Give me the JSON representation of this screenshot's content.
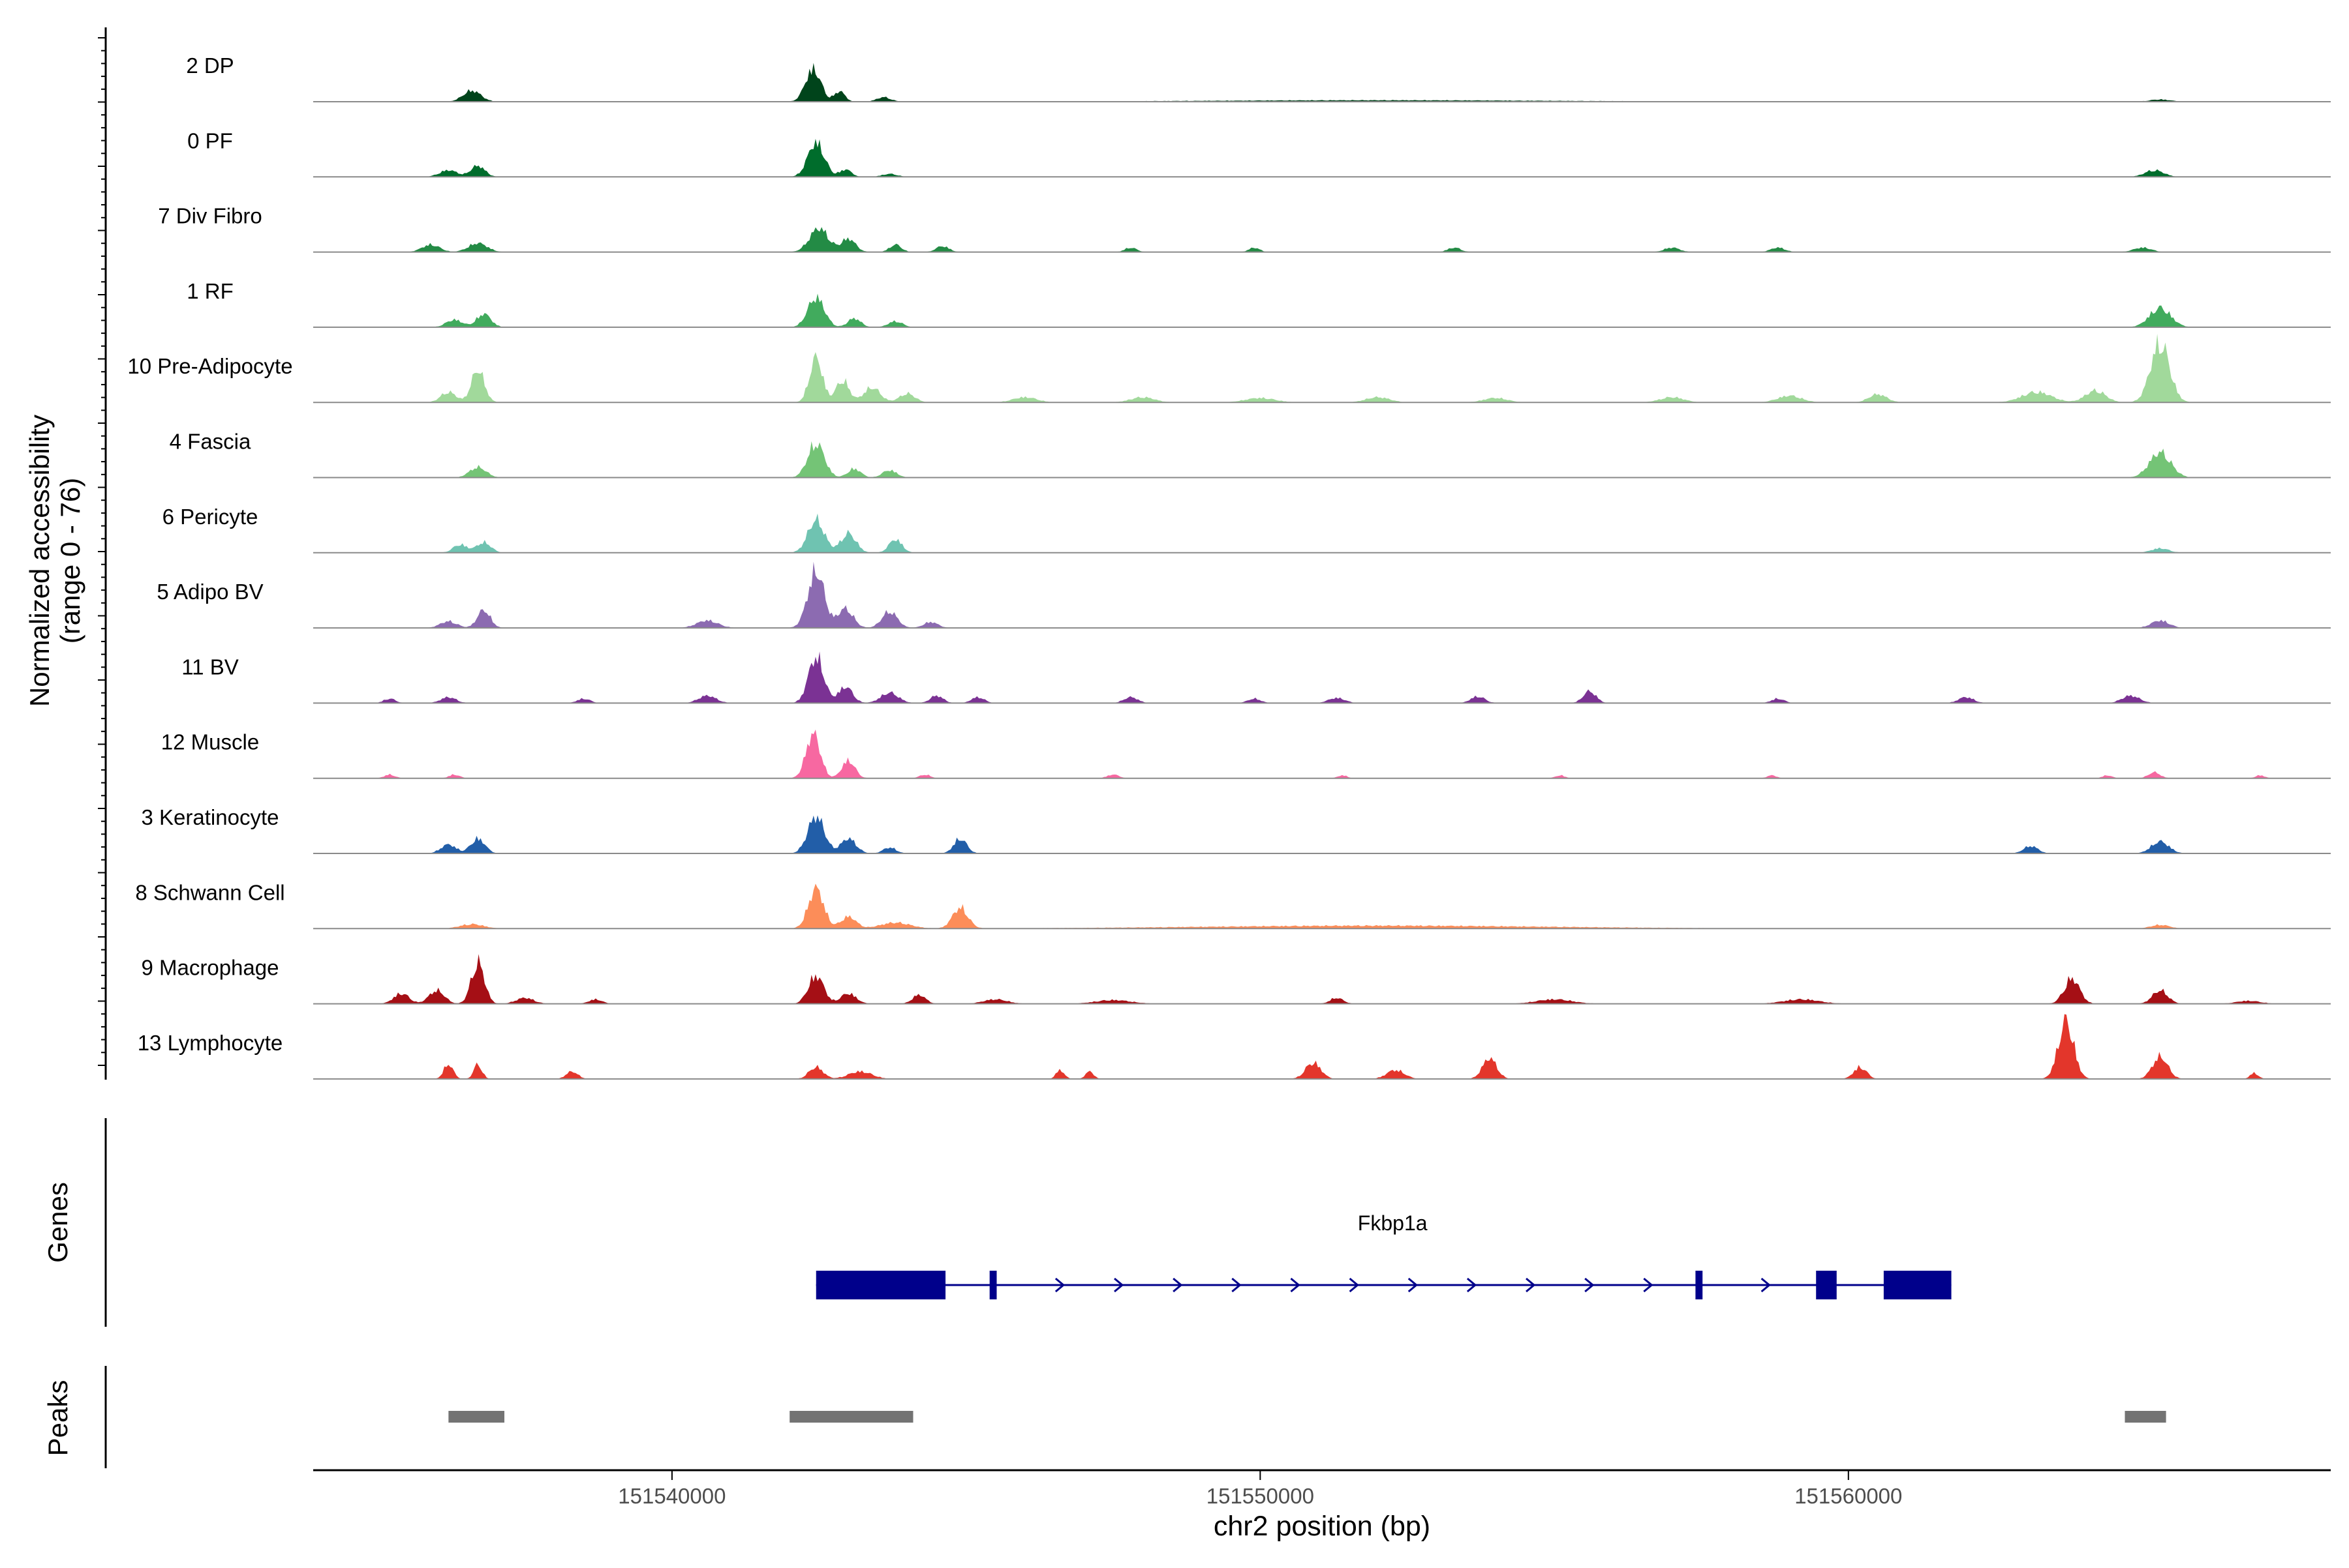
{
  "chart_data": {
    "type": "area",
    "title": "",
    "ylabel_line1": "Normalized accessibility",
    "ylabel_line2": "(range 0 - 76)",
    "xlabel": "chr2 position (bp)",
    "xlim": [
      151533900,
      151568200
    ],
    "ylim": [
      0,
      76
    ],
    "x_ticks": [
      151540000,
      151550000,
      151560000
    ],
    "x_tick_labels": [
      "151540000",
      "151550000",
      "151560000"
    ],
    "genes_label": "Genes",
    "peaks_label": "Peaks",
    "tracks": [
      {
        "name": "2 DP",
        "color": "#00441b",
        "peaks": [
          [
            151536600,
            15,
            150
          ],
          [
            151542400,
            44,
            130
          ],
          [
            151542850,
            14,
            90
          ],
          [
            151543600,
            6,
            120
          ],
          [
            151552000,
            2,
            3000
          ],
          [
            151565300,
            3,
            180
          ]
        ]
      },
      {
        "name": "0 PF",
        "color": "#006d2c",
        "peaks": [
          [
            151536200,
            9,
            150
          ],
          [
            151536700,
            15,
            120
          ],
          [
            151542450,
            46,
            140
          ],
          [
            151542950,
            10,
            100
          ],
          [
            151543700,
            4,
            130
          ],
          [
            151565200,
            9,
            160
          ]
        ]
      },
      {
        "name": "7 Div Fibro",
        "color": "#238b45",
        "peaks": [
          [
            151535900,
            10,
            150
          ],
          [
            151536700,
            12,
            160
          ],
          [
            151542500,
            32,
            160
          ],
          [
            151543000,
            18,
            120
          ],
          [
            151543800,
            10,
            100
          ],
          [
            151544600,
            8,
            110
          ],
          [
            151547800,
            6,
            100
          ],
          [
            151549900,
            6,
            90
          ],
          [
            151553300,
            6,
            110
          ],
          [
            151557000,
            6,
            130
          ],
          [
            151558800,
            6,
            120
          ],
          [
            151565000,
            6,
            150
          ]
        ]
      },
      {
        "name": "1 RF",
        "color": "#41ab5d",
        "peaks": [
          [
            151536300,
            10,
            140
          ],
          [
            151536800,
            18,
            120
          ],
          [
            151542450,
            40,
            140
          ],
          [
            151543100,
            12,
            110
          ],
          [
            151543800,
            8,
            120
          ],
          [
            151565300,
            26,
            180
          ]
        ]
      },
      {
        "name": "10 Pre-Adipocyte",
        "color": "#a1d99b",
        "peaks": [
          [
            151536200,
            14,
            130
          ],
          [
            151536700,
            44,
            110
          ],
          [
            151542450,
            60,
            110
          ],
          [
            151542900,
            30,
            110
          ],
          [
            151543400,
            20,
            140
          ],
          [
            151544000,
            12,
            130
          ],
          [
            151546000,
            7,
            200
          ],
          [
            151548000,
            7,
            200
          ],
          [
            151550000,
            6,
            250
          ],
          [
            151552000,
            7,
            200
          ],
          [
            151554000,
            6,
            200
          ],
          [
            151557000,
            7,
            200
          ],
          [
            151559000,
            9,
            200
          ],
          [
            151560500,
            11,
            150
          ],
          [
            151563200,
            14,
            250
          ],
          [
            151564200,
            16,
            170
          ],
          [
            151565300,
            80,
            160
          ]
        ]
      },
      {
        "name": "4 Fascia",
        "color": "#74c476",
        "peaks": [
          [
            151536700,
            14,
            140
          ],
          [
            151542450,
            46,
            140
          ],
          [
            151543100,
            12,
            110
          ],
          [
            151543700,
            10,
            120
          ],
          [
            151565300,
            34,
            180
          ]
        ]
      },
      {
        "name": "6 Pericyte",
        "color": "#6fc3b1",
        "peaks": [
          [
            151536400,
            11,
            120
          ],
          [
            151536800,
            14,
            120
          ],
          [
            151542450,
            44,
            140
          ],
          [
            151543000,
            26,
            130
          ],
          [
            151543800,
            18,
            110
          ],
          [
            151565300,
            6,
            150
          ]
        ]
      },
      {
        "name": "5 Adipo BV",
        "color": "#8c6bb1",
        "peaks": [
          [
            151536200,
            9,
            140
          ],
          [
            151536800,
            24,
            110
          ],
          [
            151540600,
            10,
            180
          ],
          [
            151542450,
            76,
            140
          ],
          [
            151542950,
            26,
            130
          ],
          [
            151543700,
            22,
            130
          ],
          [
            151544400,
            8,
            120
          ],
          [
            151565300,
            10,
            150
          ]
        ]
      },
      {
        "name": "11 BV",
        "color": "#7b3294",
        "peaks": [
          [
            151535200,
            6,
            100
          ],
          [
            151536200,
            8,
            130
          ],
          [
            151538500,
            6,
            110
          ],
          [
            151540600,
            10,
            150
          ],
          [
            151542450,
            62,
            130
          ],
          [
            151542950,
            22,
            120
          ],
          [
            151543700,
            14,
            150
          ],
          [
            151544500,
            10,
            110
          ],
          [
            151545200,
            8,
            110
          ],
          [
            151547800,
            8,
            120
          ],
          [
            151549900,
            6,
            110
          ],
          [
            151551300,
            7,
            140
          ],
          [
            151553700,
            9,
            120
          ],
          [
            151555600,
            16,
            110
          ],
          [
            151558800,
            6,
            110
          ],
          [
            151562000,
            8,
            130
          ],
          [
            151564800,
            10,
            150
          ]
        ]
      },
      {
        "name": "12 Muscle",
        "color": "#f768a1",
        "peaks": [
          [
            151535200,
            5,
            90
          ],
          [
            151536300,
            5,
            90
          ],
          [
            151542400,
            60,
            120
          ],
          [
            151543000,
            24,
            110
          ],
          [
            151544300,
            5,
            90
          ],
          [
            151547500,
            5,
            100
          ],
          [
            151551400,
            4,
            80
          ],
          [
            151555100,
            4,
            80
          ],
          [
            151558700,
            4,
            80
          ],
          [
            151564400,
            4,
            80
          ],
          [
            151565200,
            8,
            100
          ],
          [
            151567000,
            4,
            80
          ]
        ]
      },
      {
        "name": "3 Keratinocyte",
        "color": "#225ea8",
        "peaks": [
          [
            151536200,
            12,
            130
          ],
          [
            151536700,
            20,
            120
          ],
          [
            151542450,
            50,
            140
          ],
          [
            151543000,
            20,
            130
          ],
          [
            151543700,
            8,
            110
          ],
          [
            151544900,
            20,
            110
          ],
          [
            151563100,
            10,
            120
          ],
          [
            151565300,
            16,
            150
          ]
        ]
      },
      {
        "name": "8 Schwann Cell",
        "color": "#fc8d59",
        "peaks": [
          [
            151536600,
            6,
            200
          ],
          [
            151542450,
            54,
            130
          ],
          [
            151543000,
            16,
            130
          ],
          [
            151543800,
            8,
            250
          ],
          [
            151544900,
            28,
            130
          ],
          [
            151552000,
            4,
            3000
          ],
          [
            151565300,
            5,
            160
          ]
        ]
      },
      {
        "name": "9 Macrophage",
        "color": "#a50f15",
        "peaks": [
          [
            151535400,
            14,
            130
          ],
          [
            151536000,
            18,
            130
          ],
          [
            151536700,
            56,
            110
          ],
          [
            151537500,
            8,
            150
          ],
          [
            151538700,
            6,
            110
          ],
          [
            151542450,
            38,
            130
          ],
          [
            151543000,
            14,
            130
          ],
          [
            151544200,
            12,
            110
          ],
          [
            151545500,
            6,
            200
          ],
          [
            151547500,
            5,
            300
          ],
          [
            151551300,
            8,
            110
          ],
          [
            151555000,
            6,
            300
          ],
          [
            151559200,
            6,
            300
          ],
          [
            151563800,
            34,
            130
          ],
          [
            151565300,
            18,
            130
          ],
          [
            151566800,
            4,
            200
          ]
        ]
      },
      {
        "name": "13 Lymphocyte",
        "color": "#e3362b",
        "peaks": [
          [
            151536200,
            20,
            80
          ],
          [
            151536700,
            20,
            70
          ],
          [
            151538300,
            10,
            100
          ],
          [
            151542450,
            16,
            120
          ],
          [
            151543200,
            10,
            200
          ],
          [
            151546600,
            12,
            70
          ],
          [
            151547100,
            10,
            70
          ],
          [
            151550900,
            22,
            130
          ],
          [
            151552300,
            12,
            150
          ],
          [
            151553900,
            28,
            120
          ],
          [
            151560200,
            16,
            110
          ],
          [
            151563700,
            78,
            130
          ],
          [
            151565300,
            30,
            130
          ],
          [
            151566900,
            8,
            70
          ]
        ]
      }
    ],
    "gene": {
      "name": "Fkbp1a",
      "strand": "+",
      "start": 151542450,
      "end": 151561750,
      "exons": [
        [
          151542450,
          151544650
        ],
        [
          151545400,
          151545520
        ],
        [
          151557400,
          151557520
        ],
        [
          151559450,
          151559800
        ],
        [
          151560600,
          151561750
        ]
      ],
      "color": "#00008b"
    },
    "peaks": [
      {
        "start": 151536200,
        "end": 151537150
      },
      {
        "start": 151542000,
        "end": 151544100
      },
      {
        "start": 151564700,
        "end": 151565400
      }
    ],
    "peak_color": "#737373"
  }
}
